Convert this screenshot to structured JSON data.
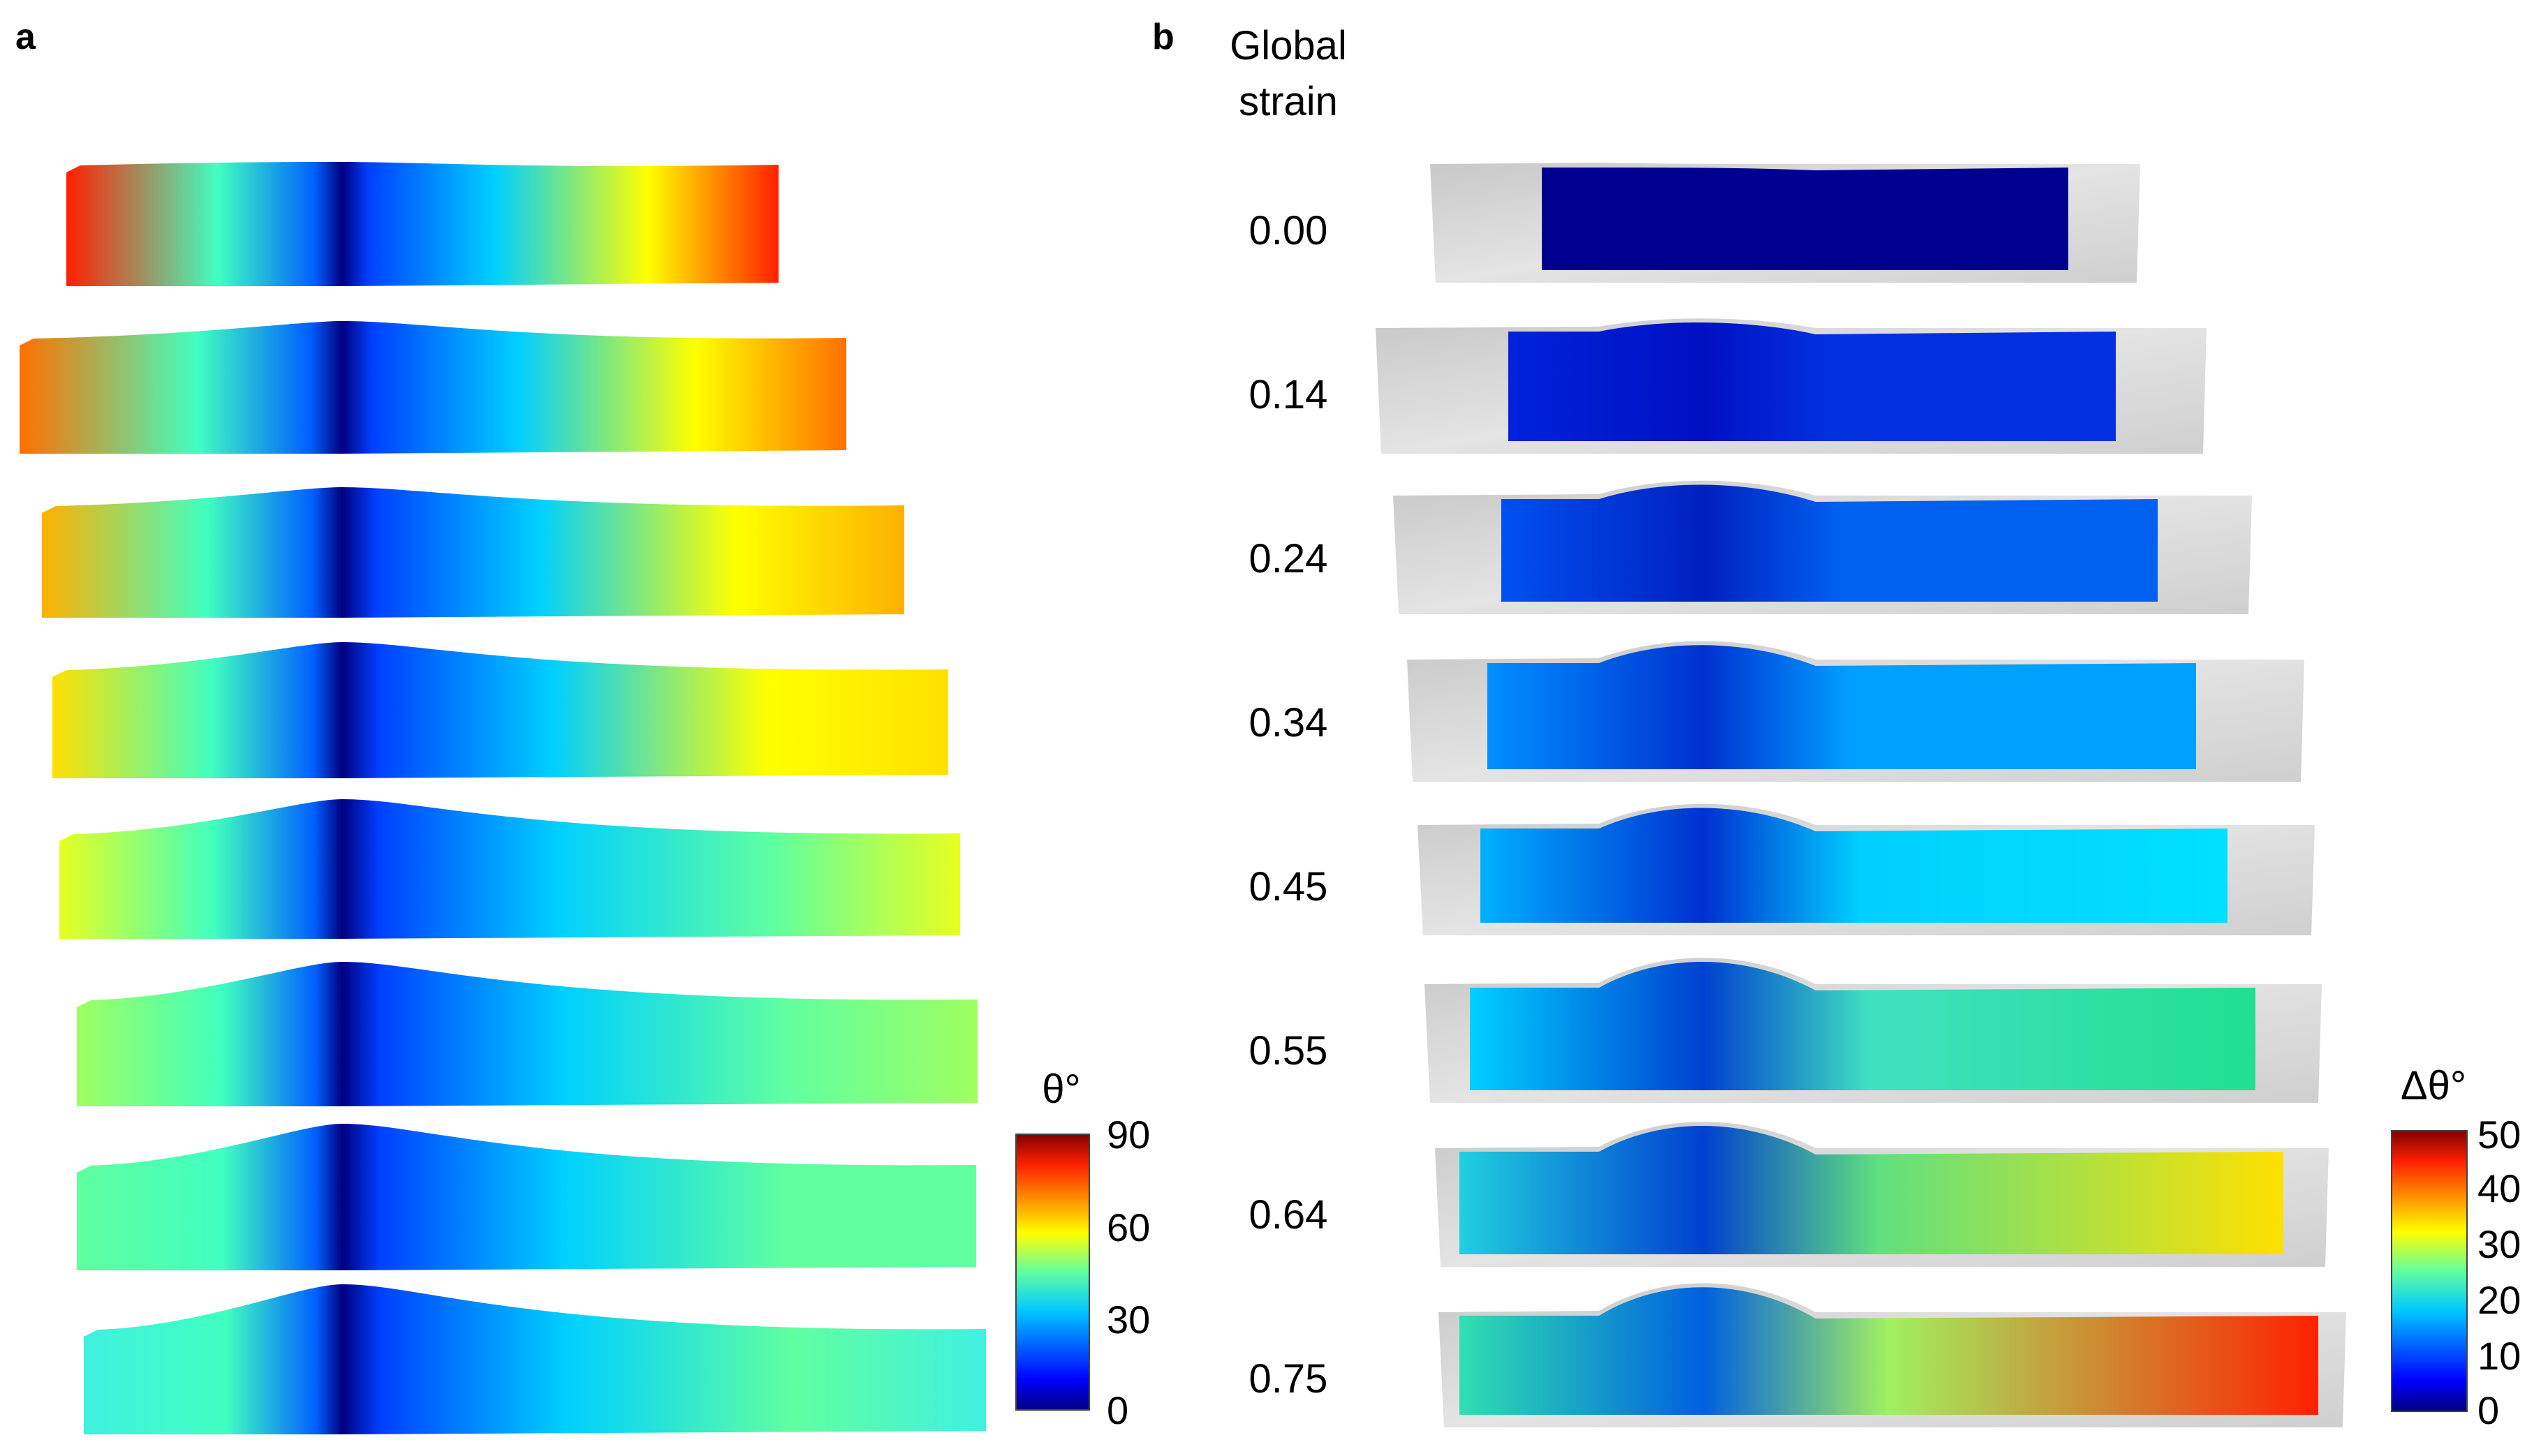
{
  "panel_a": {
    "label": "a",
    "colorbar": {
      "title": "θ°",
      "ticks": [
        "90",
        "60",
        "30",
        "0"
      ],
      "range": [
        0,
        90
      ]
    },
    "strips": [
      {
        "tip": 0.0
      },
      {
        "tip": 0.14
      },
      {
        "tip": 0.24
      },
      {
        "tip": 0.34
      },
      {
        "tip": 0.45
      },
      {
        "tip": 0.55
      },
      {
        "tip": 0.64
      },
      {
        "tip": 0.75
      }
    ]
  },
  "panel_b": {
    "label": "b",
    "header_line1": "Global",
    "header_line2": "strain",
    "strain_levels": [
      "0.00",
      "0.14",
      "0.24",
      "0.34",
      "0.45",
      "0.55",
      "0.64",
      "0.75"
    ],
    "colorbar": {
      "title": "Δθ°",
      "ticks": [
        "50",
        "40",
        "30",
        "20",
        "10",
        "0"
      ],
      "range": [
        0,
        50
      ]
    }
  },
  "colormap": [
    "#000080",
    "#0000ff",
    "#0080ff",
    "#00ffff",
    "#80ff80",
    "#ffff00",
    "#ff8000",
    "#ff0000",
    "#800000"
  ],
  "specimen_gray": "#d0d0d0"
}
